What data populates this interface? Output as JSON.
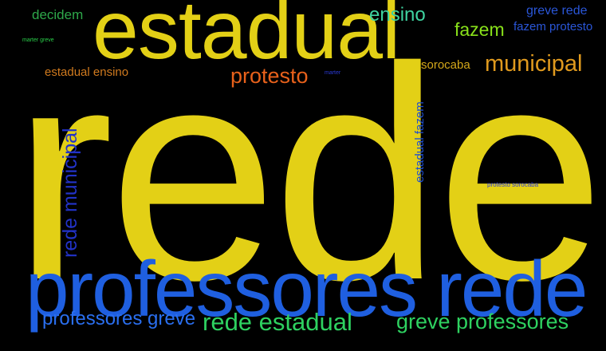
{
  "colors": {
    "background": "#000000",
    "yellow": "#e3d016",
    "blue": "#1f5fe0",
    "green": "#2ed160",
    "orange": "#e8611b",
    "amber": "#e09a1e",
    "teal": "#3fd3a0",
    "lime": "#88e01a"
  },
  "words": [
    {
      "id": "rede",
      "text": "rede",
      "color": "#e3d016"
    },
    {
      "id": "estadual",
      "text": "estadual",
      "color": "#e3d016"
    },
    {
      "id": "professores-rede",
      "text": "professores rede",
      "color": "#1f5fe0"
    },
    {
      "id": "rede-estadual",
      "text": "rede estadual",
      "color": "#2ed160"
    },
    {
      "id": "greve-professores",
      "text": "greve professores",
      "color": "#2ed160"
    },
    {
      "id": "professores-greve",
      "text": "professores greve",
      "color": "#2a6ff0"
    },
    {
      "id": "rede-municipal",
      "text": "rede municipal",
      "color": "#2233c8"
    },
    {
      "id": "municipal",
      "text": "municipal",
      "color": "#e09a1e"
    },
    {
      "id": "protesto",
      "text": "protesto",
      "color": "#e8611b"
    },
    {
      "id": "ensino",
      "text": "ensino",
      "color": "#3fd3a0"
    },
    {
      "id": "fazem",
      "text": "fazem",
      "color": "#88e01a"
    },
    {
      "id": "decidem",
      "text": "decidem",
      "color": "#2ea84a"
    },
    {
      "id": "greve-rede",
      "text": "greve rede",
      "color": "#2a56d8"
    },
    {
      "id": "fazem-protesto",
      "text": "fazem protesto",
      "color": "#2a56d8"
    },
    {
      "id": "estadual-ensino",
      "text": "estadual ensino",
      "color": "#d07a1e"
    },
    {
      "id": "sorocaba",
      "text": "sorocaba",
      "color": "#d4a81a"
    },
    {
      "id": "estadual-fazem",
      "text": "estadual fazem",
      "color": "#1f4fd0"
    },
    {
      "id": "marter-greve",
      "text": "marter greve",
      "color": "#2ad04a"
    },
    {
      "id": "marter",
      "text": "marter",
      "color": "#2a3ad8"
    },
    {
      "id": "protesto-sorocaba",
      "text": "protesto sorocaba",
      "color": "#2a3ad8"
    }
  ]
}
